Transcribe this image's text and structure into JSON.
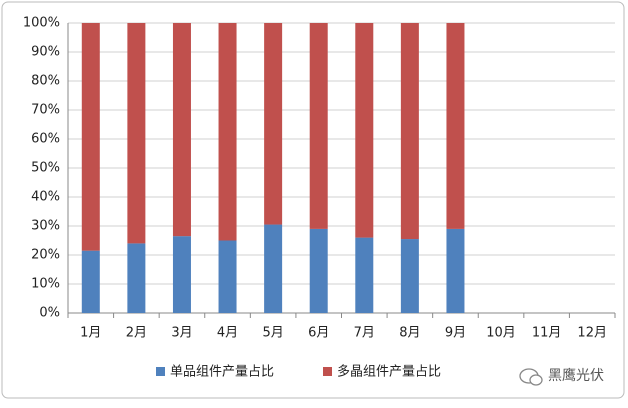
{
  "chart_data": {
    "type": "stacked_bar",
    "categories": [
      "1月",
      "2月",
      "3月",
      "4月",
      "5月",
      "6月",
      "7月",
      "8月",
      "9月",
      "10月",
      "11月",
      "12月"
    ],
    "series": [
      {
        "name": "单品组件产量占比",
        "color": "#4f81bd",
        "values": [
          21.5,
          24,
          26.5,
          25,
          30.5,
          29,
          26,
          25.5,
          29,
          null,
          null,
          null
        ]
      },
      {
        "name": "多晶组件产量占比",
        "color": "#c0504d",
        "values": [
          78.5,
          76,
          73.5,
          75,
          69.5,
          71,
          74,
          74.5,
          71,
          null,
          null,
          null
        ]
      }
    ],
    "ylim": [
      0,
      100
    ],
    "yticks": [
      {
        "value": 0,
        "label": "0%"
      },
      {
        "value": 10,
        "label": "10%"
      },
      {
        "value": 20,
        "label": "20%"
      },
      {
        "value": 30,
        "label": "30%"
      },
      {
        "value": 40,
        "label": "40%"
      },
      {
        "value": 50,
        "label": "50%"
      },
      {
        "value": 60,
        "label": "60%"
      },
      {
        "value": 70,
        "label": "70%"
      },
      {
        "value": 80,
        "label": "80%"
      },
      {
        "value": 90,
        "label": "90%"
      },
      {
        "value": 100,
        "label": "100%"
      }
    ],
    "grid": true
  },
  "watermark": "黑鹰光伏"
}
